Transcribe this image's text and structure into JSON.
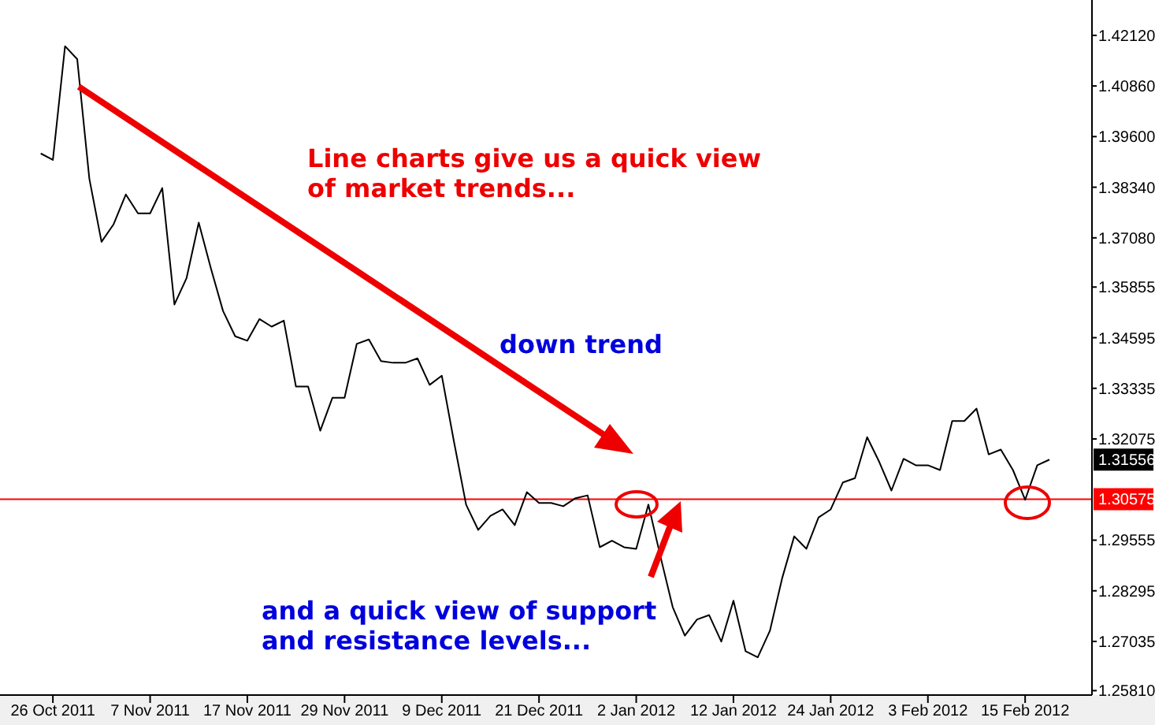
{
  "chart_data": {
    "type": "line",
    "categories": [
      null,
      "26 Oct 2011",
      null,
      null,
      null,
      null,
      null,
      null,
      null,
      "7 Nov 2011",
      null,
      null,
      null,
      null,
      null,
      null,
      null,
      "17 Nov 2011",
      null,
      null,
      null,
      null,
      null,
      null,
      null,
      "29 Nov 2011",
      null,
      null,
      null,
      null,
      null,
      null,
      null,
      "9 Dec 2011",
      null,
      null,
      null,
      null,
      null,
      null,
      null,
      "21 Dec 2011",
      null,
      null,
      null,
      null,
      null,
      null,
      null,
      "2 Jan 2012",
      null,
      null,
      null,
      null,
      null,
      null,
      null,
      "12 Jan 2012",
      null,
      null,
      null,
      null,
      null,
      null,
      null,
      "24 Jan 2012",
      null,
      null,
      null,
      null,
      null,
      null,
      null,
      "3 Feb 2012",
      null,
      null,
      null,
      null,
      null,
      null,
      null,
      "15 Feb 2012",
      null,
      null,
      null,
      null,
      null
    ],
    "series": [
      {
        "color": "#000000",
        "values": [
          1.3918,
          1.3902,
          1.4185,
          1.4153,
          1.3855,
          1.3698,
          1.3742,
          1.3816,
          1.3769,
          1.3769,
          1.3832,
          1.3542,
          1.3608,
          1.3746,
          1.3632,
          1.3526,
          1.3463,
          1.3452,
          1.3506,
          1.3487,
          1.3502,
          1.3338,
          1.3338,
          1.3228,
          1.331,
          1.331,
          1.3444,
          1.3455,
          1.3401,
          1.3397,
          1.3397,
          1.3408,
          1.3342,
          1.3365,
          1.3201,
          1.3044,
          1.2981,
          1.3016,
          1.3032,
          1.2993,
          1.3075,
          1.3048,
          1.3048,
          1.304,
          1.306,
          1.3067,
          1.2938,
          1.2954,
          1.2938,
          1.2934,
          1.3044,
          1.2914,
          1.2789,
          1.2718,
          1.2758,
          1.2769,
          1.2703,
          1.2805,
          1.2679,
          1.2664,
          1.273,
          1.286,
          1.2965,
          1.2934,
          1.3012,
          1.3032,
          1.3099,
          1.311,
          1.3212,
          1.315,
          1.3079,
          1.3158,
          1.3142,
          1.3142,
          1.313,
          1.3252,
          1.3252,
          1.3283,
          1.3169,
          1.3181,
          1.313,
          1.3056,
          1.3142,
          1.3156,
          null,
          null,
          null
        ]
      }
    ],
    "ylim": [
      1.257,
      1.43
    ],
    "yticks": [
      {
        "value": 1.4212,
        "label": "1.42120"
      },
      {
        "value": 1.4086,
        "label": "1.40860"
      },
      {
        "value": 1.396,
        "label": "1.39600"
      },
      {
        "value": 1.3834,
        "label": "1.38340"
      },
      {
        "value": 1.3708,
        "label": "1.37080"
      },
      {
        "value": 1.35855,
        "label": "1.35855"
      },
      {
        "value": 1.34595,
        "label": "1.34595"
      },
      {
        "value": 1.33335,
        "label": "1.33335"
      },
      {
        "value": 1.32075,
        "label": "1.32075"
      },
      {
        "value": 1.29555,
        "label": "1.29555"
      },
      {
        "value": 1.28295,
        "label": "1.28295"
      },
      {
        "value": 1.27035,
        "label": "1.27035"
      },
      {
        "value": 1.2581,
        "label": "1.25810"
      }
    ],
    "ref_lines": [
      {
        "axis": "y",
        "value": 1.30575,
        "label": "1.30575",
        "color": "#ff0000"
      }
    ],
    "annotations": [
      "Line charts give us a quick view\nof market trends...",
      "down trend",
      "and a quick view of support\nand resistance levels...",
      "1.31556"
    ],
    "grid": false
  }
}
